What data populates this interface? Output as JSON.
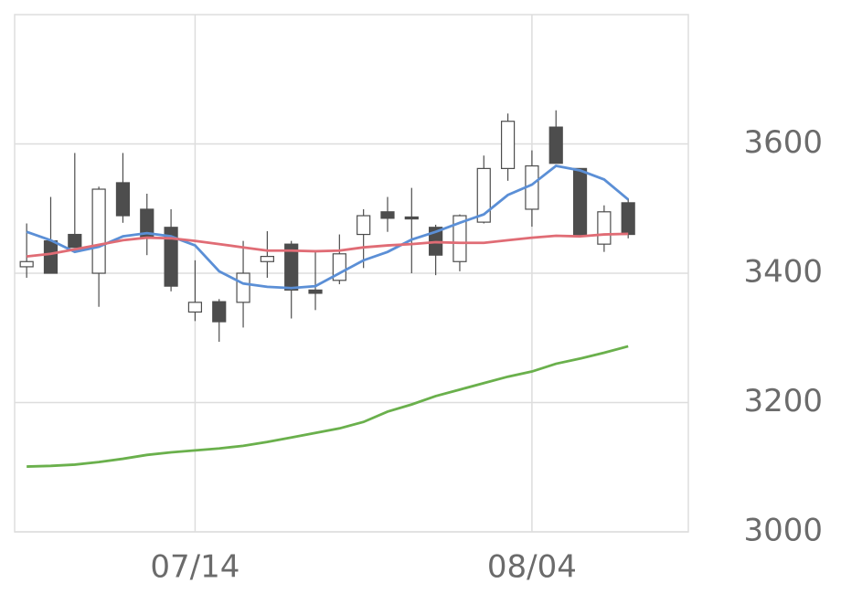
{
  "chart_data": {
    "type": "candlestick",
    "categories": [
      null,
      null,
      null,
      null,
      null,
      null,
      null,
      "07/14",
      null,
      null,
      null,
      null,
      null,
      null,
      null,
      null,
      null,
      null,
      null,
      null,
      null,
      "08/04",
      null,
      null,
      null,
      null
    ],
    "candles": {
      "open": [
        3410,
        3450,
        3460,
        3400,
        3540,
        3499,
        3471,
        3340,
        3356,
        3355,
        3418,
        3445,
        3374,
        3389,
        3460,
        3495,
        3487,
        3471,
        3418,
        3479,
        3562,
        3499,
        3626,
        3562,
        3445,
        3509
      ],
      "high": [
        3477,
        3518,
        3586,
        3534,
        3586,
        3523,
        3499,
        3420,
        3360,
        3450,
        3465,
        3450,
        3433,
        3460,
        3499,
        3518,
        3532,
        3475,
        3491,
        3582,
        3647,
        3590,
        3652,
        3562,
        3505,
        3516
      ],
      "low": [
        3393,
        3400,
        3440,
        3348,
        3478,
        3428,
        3372,
        3326,
        3294,
        3316,
        3393,
        3330,
        3343,
        3383,
        3408,
        3464,
        3400,
        3397,
        3403,
        3477,
        3543,
        3472,
        3570,
        3457,
        3433,
        3454
      ],
      "close": [
        3418,
        3400,
        3440,
        3530,
        3489,
        3454,
        3380,
        3355,
        3325,
        3400,
        3426,
        3374,
        3369,
        3430,
        3489,
        3485,
        3484,
        3428,
        3489,
        3562,
        3635,
        3566,
        3570,
        3457,
        3495,
        3460
      ],
      "up_color": "#ffffff",
      "down_color": "#4d4d4d",
      "edge_color": "#4d4d4d"
    },
    "lines": [
      {
        "color": "#5b8fd6",
        "values": [
          3464,
          3451,
          3433,
          3441,
          3457,
          3462,
          3457,
          3443,
          3403,
          3384,
          3379,
          3377,
          3380,
          3400,
          3420,
          3433,
          3452,
          3464,
          3478,
          3491,
          3521,
          3537,
          3566,
          3559,
          3545,
          3514
        ]
      },
      {
        "color": "#e06c75",
        "values": [
          3426,
          3430,
          3437,
          3444,
          3451,
          3455,
          3454,
          3450,
          3445,
          3440,
          3435,
          3435,
          3434,
          3435,
          3440,
          3443,
          3445,
          3448,
          3447,
          3447,
          3451,
          3455,
          3458,
          3457,
          3460,
          3461
        ]
      },
      {
        "color": "#6ab04c",
        "values": [
          3101,
          3102,
          3104,
          3108,
          3113,
          3119,
          3123,
          3126,
          3129,
          3133,
          3139,
          3146,
          3153,
          3160,
          3170,
          3186,
          3197,
          3210,
          3220,
          3230,
          3240,
          3248,
          3260,
          3268,
          3277,
          3287
        ]
      }
    ],
    "ylim": [
      3000,
      3800
    ],
    "yticks": [
      3000,
      3200,
      3400,
      3600
    ],
    "grid": true
  }
}
